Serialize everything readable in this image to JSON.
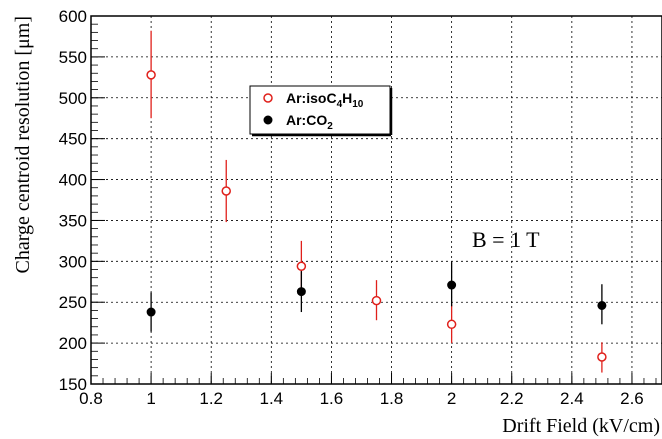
{
  "chart_data": {
    "type": "scatter",
    "xlabel": "Drift Field (kV/cm)",
    "ylabel": "Charge centroid resolution [μm]",
    "xlim": [
      0.8,
      2.7
    ],
    "ylim": [
      150,
      600
    ],
    "x_ticks": [
      "0.8",
      "1",
      "1.2",
      "1.4",
      "1.6",
      "1.8",
      "2",
      "2.2",
      "2.4",
      "2.6"
    ],
    "y_ticks": [
      "150",
      "200",
      "250",
      "300",
      "350",
      "400",
      "450",
      "500",
      "550",
      "600"
    ],
    "grid": true,
    "legend_position": "upper-left",
    "annotation": "B = 1 T",
    "series": [
      {
        "name": "Ar:isoC4H10",
        "marker": "open-circle",
        "color": "#e0201b",
        "points": [
          {
            "x": 1.0,
            "y": 528,
            "yerr_low": 475,
            "yerr_high": 582
          },
          {
            "x": 1.25,
            "y": 386,
            "yerr_low": 348,
            "yerr_high": 424
          },
          {
            "x": 1.5,
            "y": 294,
            "yerr_low": 262,
            "yerr_high": 325
          },
          {
            "x": 1.75,
            "y": 252,
            "yerr_low": 228,
            "yerr_high": 277
          },
          {
            "x": 2.0,
            "y": 223,
            "yerr_low": 200,
            "yerr_high": 247
          },
          {
            "x": 2.5,
            "y": 183,
            "yerr_low": 164,
            "yerr_high": 201
          }
        ]
      },
      {
        "name": "Ar:CO2",
        "marker": "filled-circle",
        "color": "#000000",
        "points": [
          {
            "x": 1.0,
            "y": 238,
            "yerr_low": 214,
            "yerr_high": 262
          },
          {
            "x": 1.5,
            "y": 263,
            "yerr_low": 238,
            "yerr_high": 288
          },
          {
            "x": 2.0,
            "y": 271,
            "yerr_low": 245,
            "yerr_high": 299
          },
          {
            "x": 2.5,
            "y": 246,
            "yerr_low": 223,
            "yerr_high": 272
          }
        ]
      }
    ]
  }
}
